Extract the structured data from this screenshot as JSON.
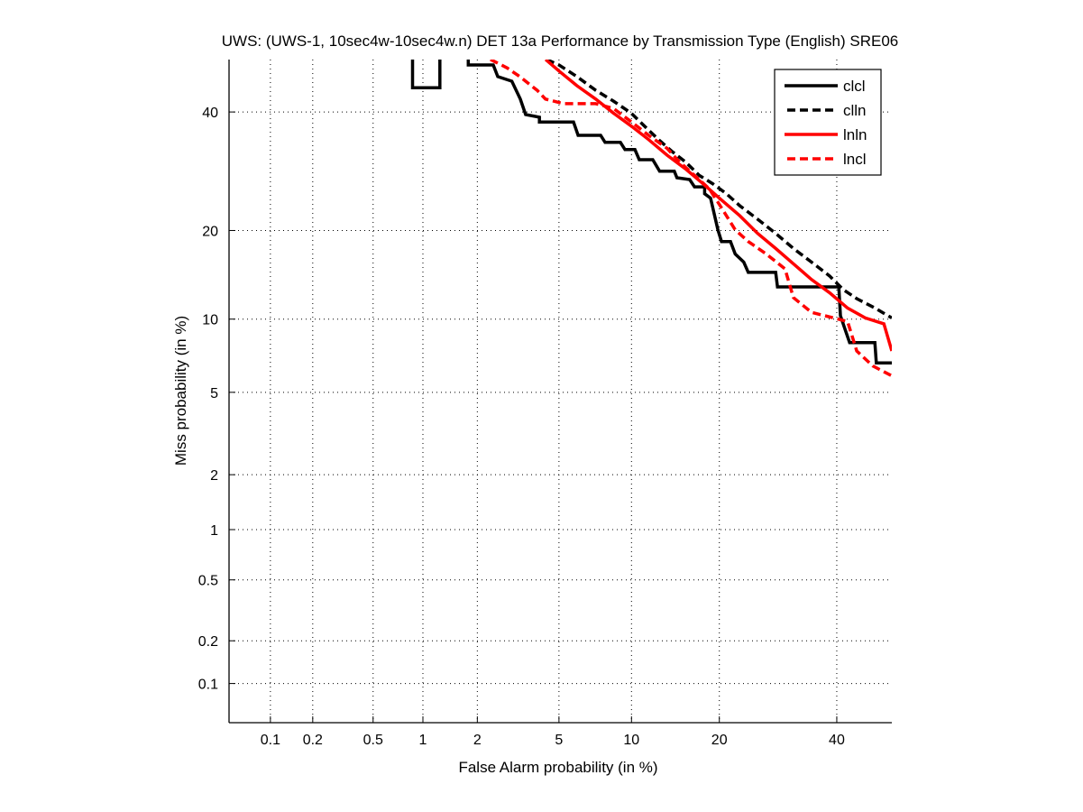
{
  "chart_data": {
    "type": "line",
    "title": "UWS: (UWS-1, 10sec4w-10sec4w.n) DET 13a Performance by Transmission Type (English) SRE06",
    "xlabel": "False Alarm probability (in %)",
    "ylabel": "Miss probability (in %)",
    "scale": "normal-deviate (probit)",
    "xlim": [
      0.03,
      51
    ],
    "ylim": [
      0.03,
      51
    ],
    "x_ticks": [
      0.1,
      0.2,
      0.5,
      1,
      2,
      5,
      10,
      20,
      40
    ],
    "x_tick_labels": [
      "0.1",
      "0.2",
      "0.5",
      "1",
      "2",
      "5",
      "10",
      "20",
      "40"
    ],
    "y_ticks": [
      0.1,
      0.2,
      0.5,
      1,
      2,
      5,
      10,
      20,
      40
    ],
    "y_tick_labels": [
      "0.1",
      "0.2",
      "0.5",
      "1",
      "2",
      "5",
      "10",
      "20",
      "40"
    ],
    "grid": true,
    "legend_position": "top-right",
    "series": [
      {
        "name": "clcl",
        "color": "#000000",
        "style": "solid",
        "segments": [
          [
            [
              0.87,
              50.3
            ],
            [
              0.87,
              44.7
            ],
            [
              1.25,
              44.7
            ],
            [
              1.25,
              50.3
            ]
          ],
          [
            [
              1.79,
              50.3
            ],
            [
              1.79,
              49.2
            ],
            [
              2.42,
              49.2
            ],
            [
              2.55,
              46.9
            ],
            [
              3.0,
              46.0
            ],
            [
              3.3,
              42.5
            ],
            [
              3.5,
              39.5
            ],
            [
              4.07,
              39.0
            ],
            [
              4.07,
              38.1
            ],
            [
              5.8,
              38.1
            ],
            [
              6.07,
              35.6
            ],
            [
              7.55,
              35.6
            ],
            [
              7.87,
              34.3
            ],
            [
              9.06,
              34.3
            ],
            [
              9.44,
              33.0
            ],
            [
              10.3,
              33.0
            ],
            [
              10.7,
              31.2
            ],
            [
              12.0,
              31.2
            ],
            [
              12.7,
              29.2
            ],
            [
              14.3,
              29.2
            ],
            [
              14.6,
              28.1
            ],
            [
              16.1,
              27.8
            ],
            [
              16.7,
              26.6
            ],
            [
              18.0,
              26.6
            ],
            [
              18.0,
              25.5
            ],
            [
              18.8,
              24.8
            ],
            [
              19.8,
              20.1
            ],
            [
              20.3,
              18.5
            ],
            [
              21.6,
              18.5
            ],
            [
              22.3,
              16.9
            ],
            [
              23.6,
              15.9
            ],
            [
              24.3,
              14.7
            ],
            [
              28.8,
              14.7
            ],
            [
              29.1,
              13.1
            ],
            [
              40.4,
              13.1
            ],
            [
              40.7,
              10.3
            ],
            [
              41.6,
              9.15
            ],
            [
              42.5,
              8.1
            ],
            [
              47.5,
              8.1
            ],
            [
              47.8,
              6.7
            ],
            [
              50.9,
              6.7
            ]
          ]
        ]
      },
      {
        "name": "clln",
        "color": "#000000",
        "style": "dashed",
        "segments": [
          [
            [
              4.39,
              50.3
            ],
            [
              5.0,
              49.2
            ],
            [
              6.0,
              46.9
            ],
            [
              7.2,
              44.2
            ],
            [
              8.5,
              42.1
            ],
            [
              9.97,
              39.8
            ],
            [
              11.2,
              37.3
            ],
            [
              12.6,
              34.8
            ],
            [
              14.0,
              32.7
            ],
            [
              15.6,
              30.8
            ],
            [
              17.3,
              28.5
            ],
            [
              19.1,
              27.1
            ],
            [
              21.0,
              25.5
            ],
            [
              23.0,
              23.6
            ],
            [
              25.8,
              21.6
            ],
            [
              28.8,
              19.6
            ],
            [
              31.9,
              17.6
            ],
            [
              35.2,
              15.9
            ],
            [
              38.6,
              14.3
            ],
            [
              41.3,
              12.8
            ],
            [
              43.9,
              11.9
            ],
            [
              47.5,
              11.0
            ],
            [
              50.9,
              10.1
            ]
          ]
        ]
      },
      {
        "name": "lnln",
        "color": "#ff0000",
        "style": "solid",
        "segments": [
          [
            [
              4.35,
              50.3
            ],
            [
              5.0,
              48.0
            ],
            [
              6.0,
              45.1
            ],
            [
              7.2,
              42.5
            ],
            [
              8.5,
              39.8
            ],
            [
              10.0,
              37.3
            ],
            [
              11.6,
              34.8
            ],
            [
              13.5,
              32.0
            ],
            [
              15.6,
              29.6
            ],
            [
              17.8,
              27.1
            ],
            [
              20.3,
              24.5
            ],
            [
              23.0,
              22.1
            ],
            [
              25.8,
              19.6
            ],
            [
              28.8,
              17.6
            ],
            [
              31.9,
              15.7
            ],
            [
              35.2,
              13.9
            ],
            [
              38.6,
              12.5
            ],
            [
              42.1,
              11.0
            ],
            [
              45.6,
              10.1
            ],
            [
              49.3,
              9.6
            ],
            [
              50.9,
              7.5
            ]
          ]
        ]
      },
      {
        "name": "lncl",
        "color": "#ff0000",
        "style": "dashed",
        "segments": [
          [
            [
              2.34,
              50.3
            ],
            [
              2.85,
              48.6
            ],
            [
              3.28,
              46.9
            ],
            [
              3.97,
              44.2
            ],
            [
              4.34,
              42.5
            ],
            [
              5.25,
              41.6
            ],
            [
              7.2,
              41.6
            ],
            [
              8.5,
              40.7
            ],
            [
              10.0,
              38.1
            ],
            [
              11.6,
              35.6
            ],
            [
              13.5,
              33.2
            ],
            [
              14.9,
              30.8
            ],
            [
              16.7,
              28.5
            ],
            [
              18.6,
              26.3
            ],
            [
              20.3,
              23.3
            ],
            [
              22.3,
              20.1
            ],
            [
              24.3,
              18.5
            ],
            [
              27.2,
              16.9
            ],
            [
              30.4,
              15.1
            ],
            [
              31.9,
              12.0
            ],
            [
              35.2,
              10.6
            ],
            [
              42.1,
              9.8
            ],
            [
              43.9,
              7.5
            ],
            [
              47.1,
              6.5
            ],
            [
              50.9,
              5.9
            ]
          ]
        ]
      }
    ]
  }
}
